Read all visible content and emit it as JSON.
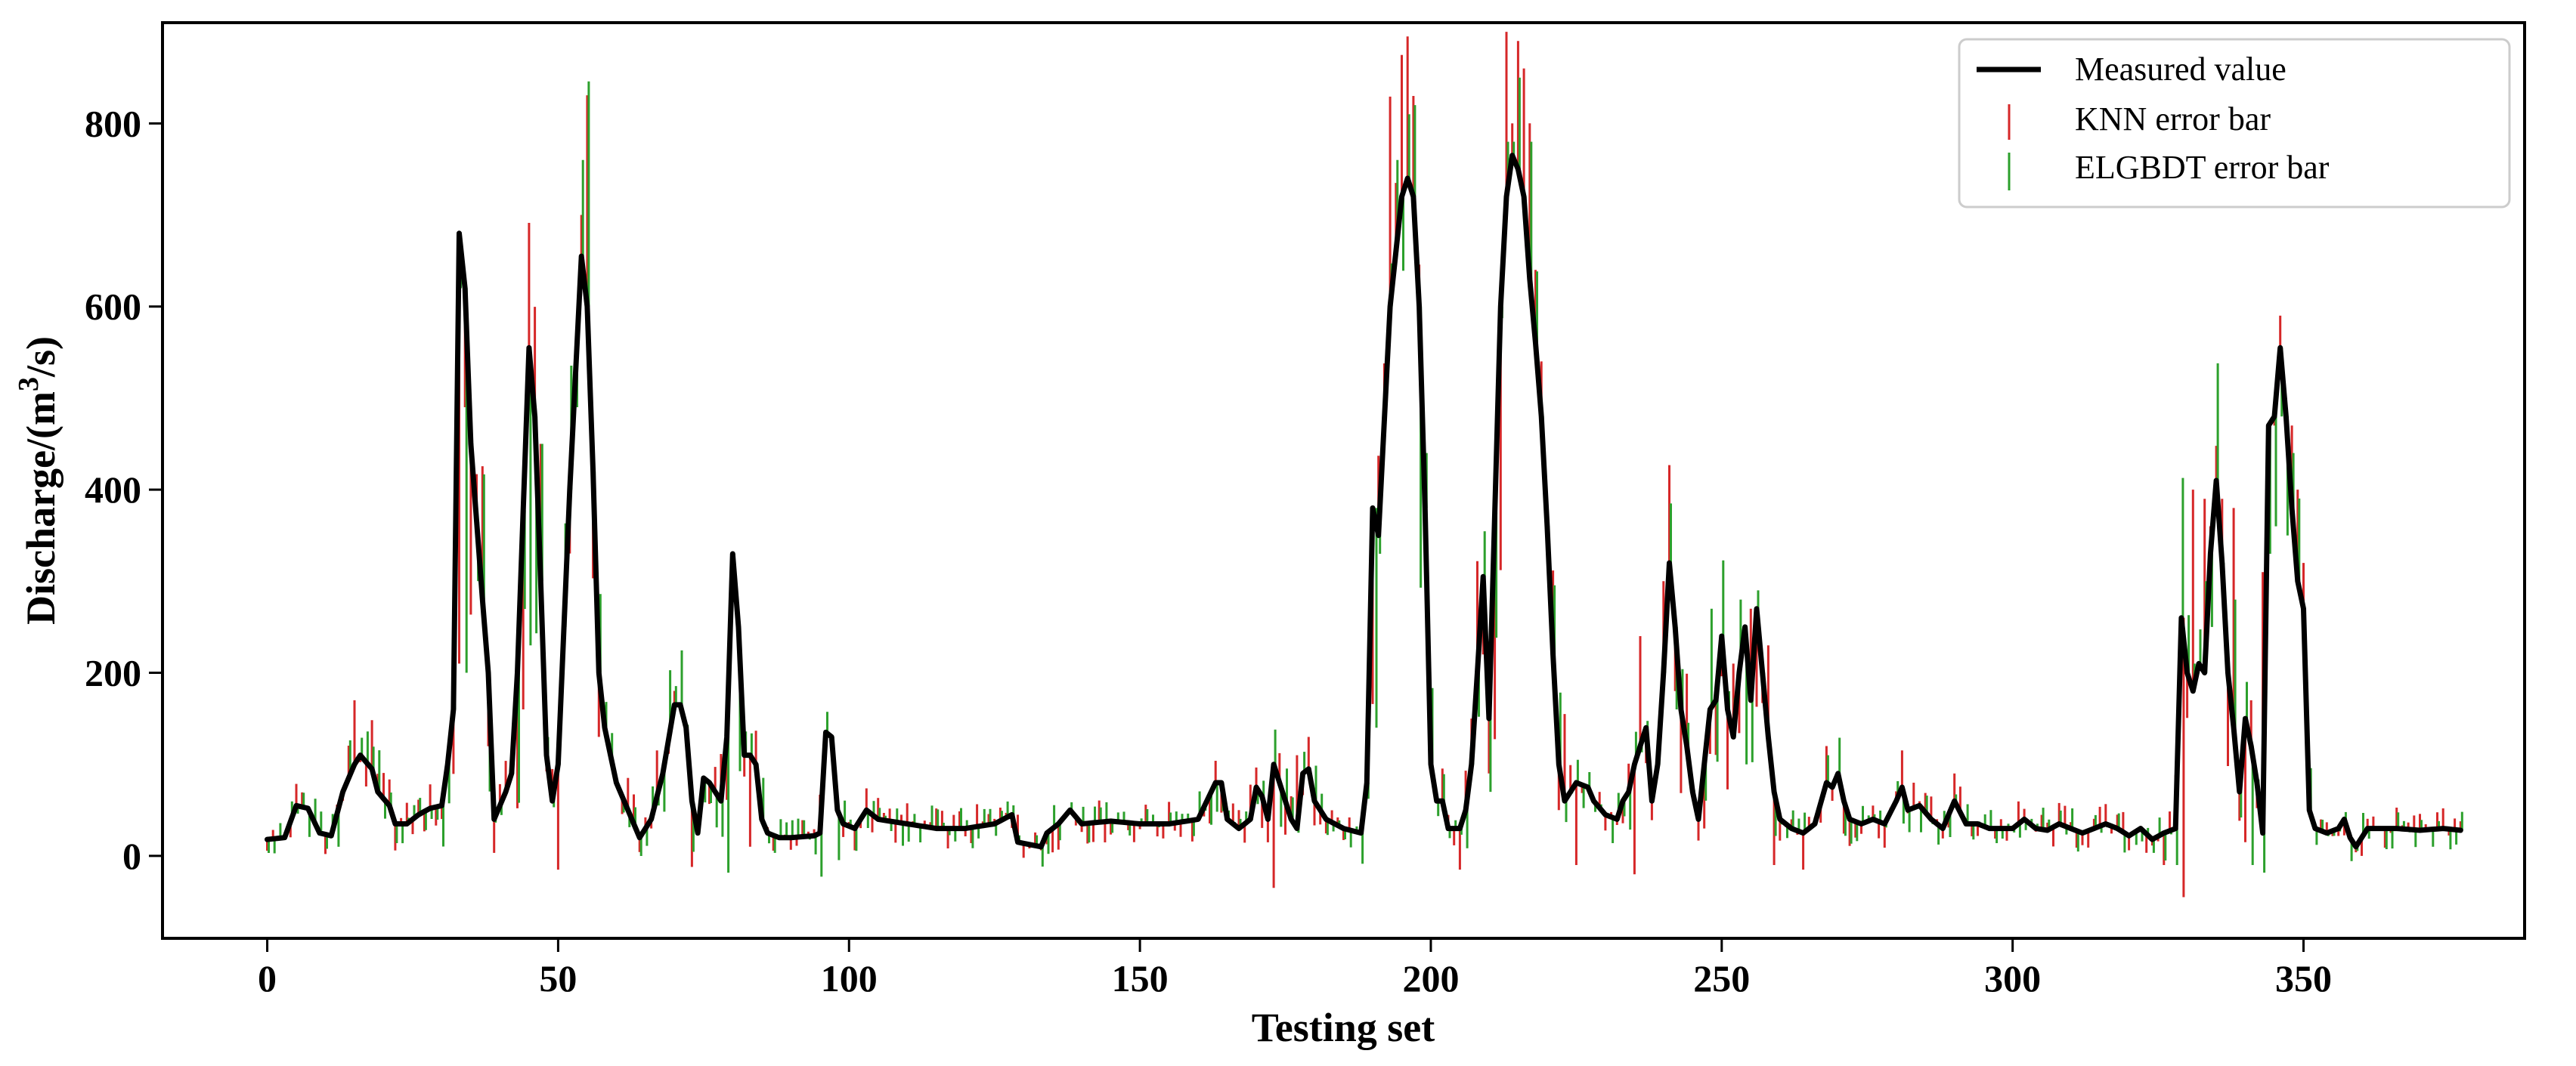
{
  "chart_data": {
    "type": "line",
    "title": "",
    "xlabel": "Testing set",
    "ylabel_prefix": "Discharge/(m",
    "ylabel_sup": "3",
    "ylabel_suffix": "/s)",
    "xlim": [
      -18,
      388
    ],
    "ylim": [
      -90,
      910
    ],
    "xticks": [
      0,
      50,
      100,
      150,
      200,
      250,
      300,
      350
    ],
    "yticks": [
      0,
      200,
      400,
      600,
      800
    ],
    "grid": false,
    "legend_position": "top-right",
    "legend": [
      {
        "label": "Measured value",
        "style": "line",
        "color": "#000000"
      },
      {
        "label": "KNN error bar",
        "style": "errorbar",
        "color": "#d62728"
      },
      {
        "label": "ELGBDT error bar",
        "style": "errorbar",
        "color": "#2ca02c"
      }
    ],
    "colors": {
      "measured": "#000000",
      "knn": "#d62728",
      "elgbdt": "#2ca02c"
    },
    "measured_keypoints": [
      [
        0,
        18
      ],
      [
        3,
        20
      ],
      [
        5,
        55
      ],
      [
        7,
        52
      ],
      [
        9,
        25
      ],
      [
        11,
        22
      ],
      [
        13,
        70
      ],
      [
        15,
        100
      ],
      [
        16,
        110
      ],
      [
        18,
        95
      ],
      [
        19,
        70
      ],
      [
        21,
        55
      ],
      [
        22,
        35
      ],
      [
        24,
        35
      ],
      [
        26,
        45
      ],
      [
        28,
        52
      ],
      [
        30,
        55
      ],
      [
        31,
        100
      ],
      [
        32,
        160
      ],
      [
        33,
        680
      ],
      [
        34,
        620
      ],
      [
        35,
        450
      ],
      [
        37,
        280
      ],
      [
        38,
        200
      ],
      [
        39,
        40
      ],
      [
        41,
        70
      ],
      [
        42,
        90
      ],
      [
        43,
        200
      ],
      [
        45,
        555
      ],
      [
        46,
        480
      ],
      [
        47,
        300
      ],
      [
        48,
        110
      ],
      [
        49,
        60
      ],
      [
        50,
        100
      ],
      [
        52,
        400
      ],
      [
        54,
        655
      ],
      [
        55,
        600
      ],
      [
        56,
        420
      ],
      [
        57,
        200
      ],
      [
        58,
        140
      ],
      [
        60,
        80
      ],
      [
        62,
        50
      ],
      [
        64,
        20
      ],
      [
        66,
        40
      ],
      [
        68,
        90
      ],
      [
        70,
        165
      ],
      [
        71,
        165
      ],
      [
        72,
        140
      ],
      [
        73,
        60
      ],
      [
        74,
        25
      ],
      [
        75,
        85
      ],
      [
        76,
        80
      ],
      [
        78,
        60
      ],
      [
        79,
        130
      ],
      [
        80,
        330
      ],
      [
        81,
        250
      ],
      [
        82,
        110
      ],
      [
        83,
        110
      ],
      [
        84,
        100
      ],
      [
        85,
        40
      ],
      [
        86,
        25
      ],
      [
        88,
        20
      ],
      [
        90,
        20
      ],
      [
        94,
        22
      ],
      [
        95,
        25
      ],
      [
        96,
        135
      ],
      [
        97,
        130
      ],
      [
        98,
        50
      ],
      [
        99,
        35
      ],
      [
        101,
        30
      ],
      [
        103,
        50
      ],
      [
        105,
        40
      ],
      [
        110,
        35
      ],
      [
        115,
        30
      ],
      [
        120,
        30
      ],
      [
        125,
        35
      ],
      [
        128,
        45
      ],
      [
        129,
        15
      ],
      [
        133,
        10
      ],
      [
        134,
        25
      ],
      [
        136,
        35
      ],
      [
        138,
        50
      ],
      [
        140,
        35
      ],
      [
        145,
        38
      ],
      [
        150,
        35
      ],
      [
        155,
        35
      ],
      [
        160,
        40
      ],
      [
        163,
        80
      ],
      [
        164,
        80
      ],
      [
        165,
        40
      ],
      [
        167,
        30
      ],
      [
        169,
        40
      ],
      [
        170,
        75
      ],
      [
        171,
        65
      ],
      [
        172,
        40
      ],
      [
        173,
        100
      ],
      [
        174,
        80
      ],
      [
        175,
        60
      ],
      [
        176,
        40
      ],
      [
        177,
        30
      ],
      [
        178,
        90
      ],
      [
        179,
        95
      ],
      [
        180,
        60
      ],
      [
        182,
        40
      ],
      [
        185,
        30
      ],
      [
        188,
        25
      ],
      [
        189,
        80
      ],
      [
        190,
        380
      ],
      [
        191,
        350
      ],
      [
        193,
        600
      ],
      [
        195,
        720
      ],
      [
        196,
        740
      ],
      [
        197,
        720
      ],
      [
        198,
        600
      ],
      [
        199,
        380
      ],
      [
        200,
        100
      ],
      [
        201,
        60
      ],
      [
        202,
        60
      ],
      [
        203,
        30
      ],
      [
        205,
        30
      ],
      [
        206,
        50
      ],
      [
        207,
        100
      ],
      [
        208,
        200
      ],
      [
        209,
        305
      ],
      [
        210,
        150
      ],
      [
        212,
        600
      ],
      [
        213,
        720
      ],
      [
        214,
        765
      ],
      [
        215,
        750
      ],
      [
        216,
        720
      ],
      [
        217,
        630
      ],
      [
        218,
        560
      ],
      [
        219,
        480
      ],
      [
        220,
        360
      ],
      [
        221,
        220
      ],
      [
        222,
        100
      ],
      [
        223,
        60
      ],
      [
        225,
        80
      ],
      [
        227,
        75
      ],
      [
        228,
        60
      ],
      [
        230,
        45
      ],
      [
        232,
        40
      ],
      [
        233,
        60
      ],
      [
        234,
        70
      ],
      [
        235,
        100
      ],
      [
        236,
        120
      ],
      [
        237,
        140
      ],
      [
        238,
        60
      ],
      [
        239,
        100
      ],
      [
        240,
        200
      ],
      [
        241,
        320
      ],
      [
        242,
        250
      ],
      [
        243,
        160
      ],
      [
        244,
        120
      ],
      [
        245,
        70
      ],
      [
        246,
        40
      ],
      [
        247,
        100
      ],
      [
        248,
        160
      ],
      [
        249,
        170
      ],
      [
        250,
        240
      ],
      [
        251,
        160
      ],
      [
        252,
        130
      ],
      [
        253,
        200
      ],
      [
        254,
        250
      ],
      [
        255,
        170
      ],
      [
        256,
        270
      ],
      [
        257,
        200
      ],
      [
        258,
        130
      ],
      [
        259,
        70
      ],
      [
        260,
        40
      ],
      [
        262,
        30
      ],
      [
        264,
        25
      ],
      [
        266,
        35
      ],
      [
        268,
        80
      ],
      [
        269,
        75
      ],
      [
        270,
        90
      ],
      [
        271,
        60
      ],
      [
        272,
        40
      ],
      [
        274,
        35
      ],
      [
        276,
        40
      ],
      [
        278,
        35
      ],
      [
        280,
        60
      ],
      [
        281,
        75
      ],
      [
        282,
        50
      ],
      [
        284,
        55
      ],
      [
        286,
        40
      ],
      [
        288,
        30
      ],
      [
        290,
        60
      ],
      [
        292,
        35
      ],
      [
        294,
        35
      ],
      [
        296,
        30
      ],
      [
        300,
        30
      ],
      [
        302,
        40
      ],
      [
        304,
        30
      ],
      [
        306,
        28
      ],
      [
        308,
        35
      ],
      [
        310,
        30
      ],
      [
        312,
        25
      ],
      [
        314,
        30
      ],
      [
        316,
        35
      ],
      [
        318,
        30
      ],
      [
        320,
        22
      ],
      [
        322,
        30
      ],
      [
        324,
        18
      ],
      [
        326,
        25
      ],
      [
        328,
        30
      ],
      [
        329,
        260
      ],
      [
        330,
        200
      ],
      [
        331,
        180
      ],
      [
        332,
        210
      ],
      [
        333,
        200
      ],
      [
        334,
        330
      ],
      [
        335,
        410
      ],
      [
        336,
        320
      ],
      [
        337,
        200
      ],
      [
        338,
        140
      ],
      [
        339,
        70
      ],
      [
        340,
        150
      ],
      [
        341,
        120
      ],
      [
        342,
        80
      ],
      [
        343,
        25
      ],
      [
        344,
        470
      ],
      [
        345,
        480
      ],
      [
        346,
        555
      ],
      [
        347,
        480
      ],
      [
        348,
        380
      ],
      [
        349,
        300
      ],
      [
        350,
        270
      ],
      [
        351,
        50
      ],
      [
        352,
        30
      ],
      [
        354,
        25
      ],
      [
        356,
        30
      ],
      [
        357,
        40
      ],
      [
        358,
        20
      ],
      [
        359,
        10
      ],
      [
        361,
        30
      ],
      [
        363,
        30
      ],
      [
        366,
        30
      ],
      [
        370,
        28
      ],
      [
        374,
        30
      ],
      [
        377,
        28
      ]
    ],
    "knn_extremes": [
      [
        15,
        170
      ],
      [
        34,
        490
      ],
      [
        33,
        210
      ],
      [
        44,
        160
      ],
      [
        47,
        450
      ],
      [
        50,
        -15
      ],
      [
        54,
        700
      ],
      [
        57,
        130
      ],
      [
        66,
        30
      ],
      [
        80,
        300
      ],
      [
        83,
        10
      ],
      [
        97,
        130
      ],
      [
        129,
        45
      ],
      [
        173,
        -35
      ],
      [
        177,
        110
      ],
      [
        179,
        130
      ],
      [
        189,
        130
      ],
      [
        194,
        735
      ],
      [
        196,
        895
      ],
      [
        197,
        830
      ],
      [
        199,
        420
      ],
      [
        205,
        -15
      ],
      [
        207,
        150
      ],
      [
        209,
        220
      ],
      [
        210,
        90
      ],
      [
        213,
        900
      ],
      [
        214,
        800
      ],
      [
        215,
        890
      ],
      [
        216,
        860
      ],
      [
        217,
        800
      ],
      [
        218,
        640
      ],
      [
        219,
        540
      ],
      [
        220,
        380
      ],
      [
        222,
        50
      ],
      [
        223,
        155
      ],
      [
        225,
        -10
      ],
      [
        235,
        -20
      ],
      [
        236,
        240
      ],
      [
        240,
        300
      ],
      [
        242,
        180
      ],
      [
        247,
        30
      ],
      [
        252,
        210
      ],
      [
        255,
        270
      ],
      [
        258,
        230
      ],
      [
        259,
        -10
      ],
      [
        264,
        -15
      ],
      [
        268,
        120
      ],
      [
        273,
        20
      ],
      [
        283,
        80
      ],
      [
        290,
        90
      ],
      [
        326,
        -10
      ],
      [
        329,
        -45
      ],
      [
        329,
        250
      ],
      [
        331,
        400
      ],
      [
        333,
        390
      ],
      [
        334,
        360
      ],
      [
        336,
        390
      ],
      [
        338,
        380
      ],
      [
        340,
        15
      ],
      [
        341,
        170
      ],
      [
        343,
        310
      ],
      [
        344,
        340
      ],
      [
        345,
        470
      ],
      [
        346,
        590
      ],
      [
        347,
        500
      ],
      [
        348,
        470
      ],
      [
        349,
        400
      ],
      [
        350,
        320
      ],
      [
        360,
        0
      ]
    ],
    "elgbdt_extremes": [
      [
        34,
        200
      ],
      [
        35,
        440
      ],
      [
        36,
        300
      ],
      [
        45,
        230
      ],
      [
        47,
        450
      ],
      [
        53,
        490
      ],
      [
        54,
        760
      ],
      [
        56,
        410
      ],
      [
        80,
        280
      ],
      [
        97,
        120
      ],
      [
        190,
        140
      ],
      [
        190,
        380
      ],
      [
        191,
        330
      ],
      [
        194,
        760
      ],
      [
        196,
        810
      ],
      [
        197,
        820
      ],
      [
        199,
        440
      ],
      [
        210,
        70
      ],
      [
        213,
        780
      ],
      [
        214,
        780
      ],
      [
        215,
        850
      ],
      [
        216,
        710
      ],
      [
        217,
        780
      ],
      [
        219,
        460
      ],
      [
        220,
        330
      ],
      [
        238,
        70
      ],
      [
        240,
        240
      ],
      [
        242,
        160
      ],
      [
        248,
        270
      ],
      [
        251,
        180
      ],
      [
        253,
        280
      ],
      [
        254,
        100
      ],
      [
        256,
        290
      ],
      [
        268,
        110
      ],
      [
        326,
        -5
      ],
      [
        328,
        -10
      ],
      [
        331,
        210
      ],
      [
        333,
        300
      ],
      [
        334,
        250
      ],
      [
        336,
        300
      ],
      [
        338,
        280
      ],
      [
        340,
        190
      ],
      [
        341,
        -10
      ],
      [
        344,
        330
      ],
      [
        345,
        360
      ],
      [
        346,
        480
      ],
      [
        347,
        350
      ],
      [
        348,
        440
      ],
      [
        350,
        220
      ],
      [
        372,
        10
      ]
    ]
  }
}
